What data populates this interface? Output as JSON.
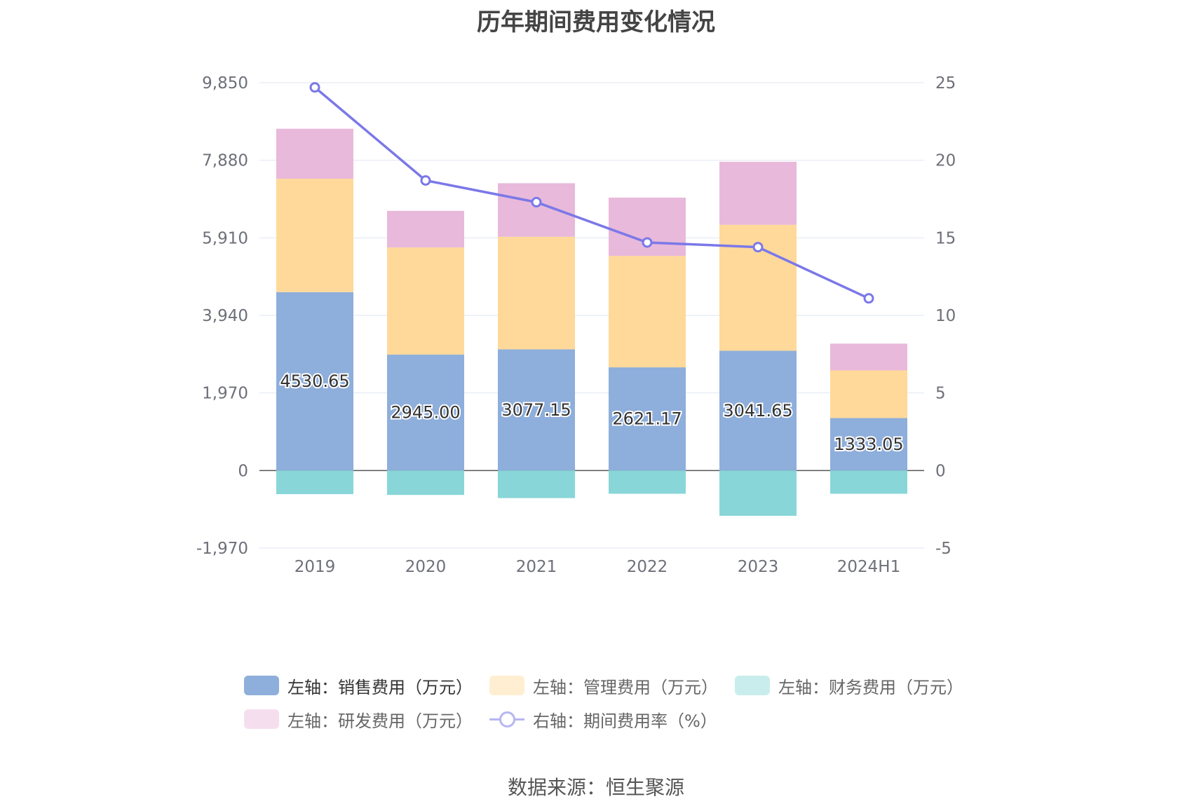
{
  "title": "历年期间费用变化情况",
  "source": "数据来源：恒生聚源",
  "chart_data": {
    "type": "bar",
    "stacked": true,
    "categories": [
      "2019",
      "2020",
      "2021",
      "2022",
      "2023",
      "2024H1"
    ],
    "left_axis": {
      "ticks": [
        "9,850",
        "7,880",
        "5,910",
        "3,940",
        "1,970",
        "0",
        "-1,970"
      ],
      "min": -1970,
      "max": 9850
    },
    "right_axis": {
      "ticks": [
        "25",
        "20",
        "15",
        "10",
        "5",
        "0",
        "-5"
      ],
      "min": -5,
      "max": 25
    },
    "series": [
      {
        "name": "左轴：销售费用（万元）",
        "color": "#8eaedb",
        "axis": "left",
        "values": [
          4530.65,
          2945.0,
          3077.15,
          2621.17,
          3041.65,
          1333.05
        ],
        "labels": [
          "4530.65",
          "2945.00",
          "3077.15",
          "2621.17",
          "3041.65",
          "1333.05"
        ]
      },
      {
        "name": "左轴：管理费用（万元）",
        "color": "#ffd99a",
        "axis": "left",
        "values": [
          2880,
          2720,
          2860,
          2830,
          3200,
          1210
        ]
      },
      {
        "name": "左轴：财务费用（万元）",
        "color": "#88d6d8",
        "axis": "left",
        "values": [
          -600,
          -620,
          -700,
          -590,
          -1150,
          -590
        ]
      },
      {
        "name": "左轴：研发费用（万元）",
        "color": "#e8b9da",
        "axis": "left",
        "values": [
          1270,
          930,
          1360,
          1480,
          1600,
          680
        ]
      },
      {
        "name": "右轴：期间费用率（%）",
        "color": "#7b78e8",
        "axis": "right",
        "type": "line",
        "values": [
          24.7,
          18.7,
          17.3,
          14.7,
          14.4,
          11.1
        ]
      }
    ]
  }
}
